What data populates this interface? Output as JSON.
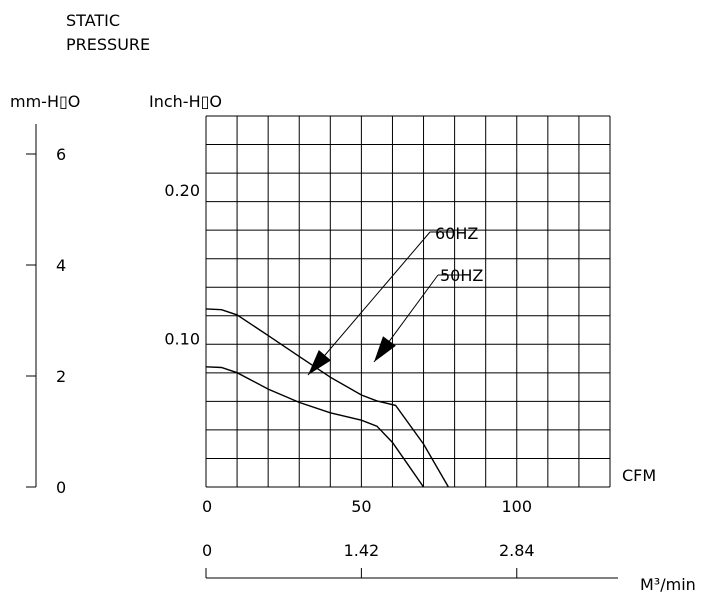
{
  "chart_data": {
    "type": "line",
    "title_lines": [
      "STATIC",
      "PRESSURE"
    ],
    "ylabel_mm": "mm-H▯O",
    "ylabel_inch": "Inch-H▯O",
    "xlabel_cfm": "CFM",
    "xlabel_m3": "M³/min",
    "grid": true,
    "xlim_cfm": [
      0,
      130
    ],
    "ylim_inch": [
      0,
      0.25
    ],
    "mm_ticks": [
      {
        "value": 0,
        "label": "0"
      },
      {
        "value": 2,
        "label": "2"
      },
      {
        "value": 4,
        "label": "4"
      },
      {
        "value": 6,
        "label": "6"
      }
    ],
    "inch_ticks": [
      {
        "value": 0.1,
        "label": "0.10"
      },
      {
        "value": 0.2,
        "label": "0.20"
      }
    ],
    "cfm_ticks": [
      {
        "value": 0,
        "label": "0"
      },
      {
        "value": 50,
        "label": "50"
      },
      {
        "value": 100,
        "label": "100"
      }
    ],
    "m3_ticks": [
      {
        "cfm": 0,
        "label": "0"
      },
      {
        "cfm": 50,
        "label": "1.42"
      },
      {
        "cfm": 100,
        "label": "2.84"
      }
    ],
    "series": [
      {
        "name": "60HZ",
        "points": [
          [
            0,
            0.12
          ],
          [
            5,
            0.1195
          ],
          [
            10,
            0.116
          ],
          [
            20,
            0.102
          ],
          [
            30,
            0.088
          ],
          [
            40,
            0.074
          ],
          [
            50,
            0.062
          ],
          [
            55,
            0.058
          ],
          [
            61,
            0.055
          ],
          [
            70,
            0.029
          ],
          [
            78,
            0.0
          ]
        ]
      },
      {
        "name": "50HZ",
        "points": [
          [
            0,
            0.081
          ],
          [
            5,
            0.0805
          ],
          [
            10,
            0.077
          ],
          [
            20,
            0.066
          ],
          [
            30,
            0.057
          ],
          [
            40,
            0.05
          ],
          [
            50,
            0.045
          ],
          [
            55,
            0.041
          ],
          [
            60,
            0.03
          ],
          [
            65,
            0.015
          ],
          [
            70,
            0.0
          ]
        ]
      }
    ],
    "annotations": [
      {
        "text": "60HZ",
        "series": "60HZ"
      },
      {
        "text": "50HZ",
        "series": "50HZ"
      }
    ]
  }
}
